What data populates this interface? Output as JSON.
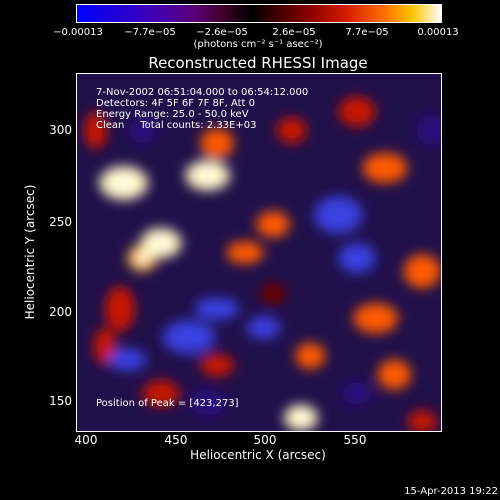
{
  "colorbar": {
    "ticks": [
      "−0.00013",
      "−7.7e−05",
      "−2.6e−05",
      "2.6e−05",
      "7.7e−05",
      "0.00013"
    ],
    "units": "(photons cm⁻² s⁻¹ asec⁻²)"
  },
  "chart_data": {
    "type": "heatmap",
    "title": "Reconstructed RHESSI Image",
    "xlabel": "Heliocentric X (arcsec)",
    "ylabel": "Heliocentric Y (arcsec)",
    "xlim": [
      395,
      590
    ],
    "ylim": [
      140,
      330
    ],
    "xticks": [
      "400",
      "450",
      "500",
      "550"
    ],
    "yticks": [
      "300",
      "250",
      "200",
      "150"
    ],
    "colorbar_range": [
      -0.00013,
      0.00013
    ],
    "colormap": "blue-purple-black-red-yellow-white",
    "annotations": {
      "time": "7-Nov-2002 06:51:04.000 to 06:54:12.000",
      "detectors": "Detectors: 4F 5F 6F 7F 8F, Att 0",
      "energy": "Energy Range: 25.0 - 50.0 keV",
      "clean": "Clean     Total counts: 2.33E+03",
      "peak": "Position of Peak = [423,273]"
    },
    "blobs": [
      {
        "x": 420,
        "y": 272,
        "sx": 13,
        "sy": 9,
        "v": 1.0
      },
      {
        "x": 465,
        "y": 276,
        "sx": 12,
        "sy": 8,
        "v": 0.85
      },
      {
        "x": 440,
        "y": 240,
        "sx": 11,
        "sy": 8,
        "v": 0.9
      },
      {
        "x": 430,
        "y": 232,
        "sx": 8,
        "sy": 7,
        "v": 0.75
      },
      {
        "x": 500,
        "y": 250,
        "sx": 9,
        "sy": 7,
        "v": 0.55
      },
      {
        "x": 485,
        "y": 235,
        "sx": 10,
        "sy": 6,
        "v": 0.55
      },
      {
        "x": 470,
        "y": 293,
        "sx": 9,
        "sy": 8,
        "v": 0.55
      },
      {
        "x": 418,
        "y": 205,
        "sx": 8,
        "sy": 12,
        "v": 0.45
      },
      {
        "x": 410,
        "y": 185,
        "sx": 6,
        "sy": 10,
        "v": 0.4
      },
      {
        "x": 560,
        "y": 280,
        "sx": 12,
        "sy": 8,
        "v": 0.5
      },
      {
        "x": 580,
        "y": 225,
        "sx": 10,
        "sy": 9,
        "v": 0.5
      },
      {
        "x": 555,
        "y": 200,
        "sx": 12,
        "sy": 8,
        "v": 0.55
      },
      {
        "x": 565,
        "y": 170,
        "sx": 9,
        "sy": 8,
        "v": 0.5
      },
      {
        "x": 520,
        "y": 180,
        "sx": 8,
        "sy": 7,
        "v": 0.5
      },
      {
        "x": 515,
        "y": 147,
        "sx": 9,
        "sy": 7,
        "v": 0.9
      },
      {
        "x": 470,
        "y": 175,
        "sx": 9,
        "sy": 6,
        "v": 0.4
      },
      {
        "x": 440,
        "y": 160,
        "sx": 10,
        "sy": 7,
        "v": 0.45
      },
      {
        "x": 580,
        "y": 145,
        "sx": 8,
        "sy": 6,
        "v": 0.4
      },
      {
        "x": 510,
        "y": 300,
        "sx": 8,
        "sy": 7,
        "v": 0.4
      },
      {
        "x": 545,
        "y": 310,
        "sx": 10,
        "sy": 8,
        "v": 0.45
      },
      {
        "x": 405,
        "y": 300,
        "sx": 6,
        "sy": 10,
        "v": 0.45
      },
      {
        "x": 500,
        "y": 213,
        "sx": 7,
        "sy": 6,
        "v": 0.35
      },
      {
        "x": 430,
        "y": 300,
        "sx": 7,
        "sy": 7,
        "v": -0.3
      },
      {
        "x": 535,
        "y": 255,
        "sx": 13,
        "sy": 10,
        "v": -0.45
      },
      {
        "x": 545,
        "y": 232,
        "sx": 10,
        "sy": 8,
        "v": -0.4
      },
      {
        "x": 470,
        "y": 205,
        "sx": 12,
        "sy": 6,
        "v": -0.4
      },
      {
        "x": 455,
        "y": 190,
        "sx": 14,
        "sy": 9,
        "v": -0.35
      },
      {
        "x": 422,
        "y": 178,
        "sx": 10,
        "sy": 6,
        "v": -0.45
      },
      {
        "x": 495,
        "y": 195,
        "sx": 9,
        "sy": 6,
        "v": -0.35
      },
      {
        "x": 585,
        "y": 300,
        "sx": 8,
        "sy": 8,
        "v": -0.3
      },
      {
        "x": 465,
        "y": 155,
        "sx": 9,
        "sy": 7,
        "v": -0.3
      },
      {
        "x": 545,
        "y": 160,
        "sx": 8,
        "sy": 6,
        "v": -0.3
      }
    ]
  },
  "footer": {
    "date": "15-Apr-2013 19:22"
  }
}
